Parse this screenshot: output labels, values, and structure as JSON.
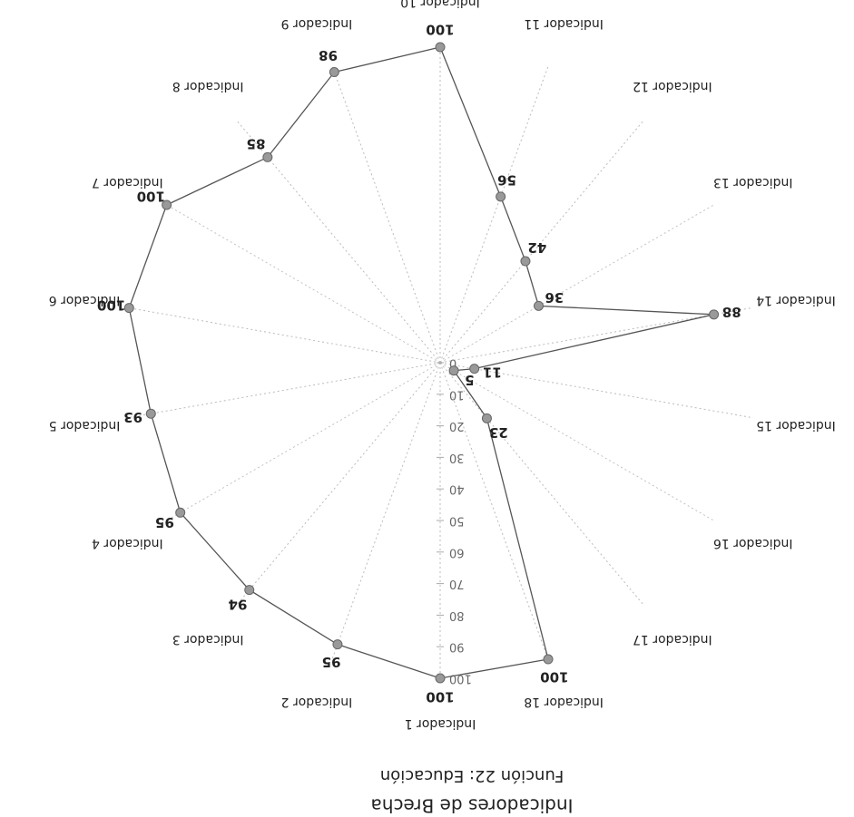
{
  "chart_data": {
    "type": "radar",
    "title": "Indicadores de Brecha",
    "subtitle": "Función 22: Educación",
    "categories": [
      "Indicador 1",
      "Indicador 2",
      "Indicador 3",
      "Indicador 4",
      "Indicador 5",
      "Indicador 6",
      "Indicador 7",
      "Indicador 8",
      "Indicador 9",
      "Indicador 10",
      "Indicador 11",
      "Indicador 12",
      "Indicador 13",
      "Indicador 14",
      "Indicador 15",
      "Indicador 16",
      "Indicador 17",
      "Indicador 18"
    ],
    "values": [
      100,
      95,
      94,
      95,
      93,
      100,
      100,
      85,
      98,
      100,
      56,
      42,
      36,
      88,
      11,
      5,
      23,
      100
    ],
    "color": "#555555",
    "ylim": [
      0,
      100
    ],
    "yticks": [
      0,
      10,
      20,
      30,
      40,
      50,
      60,
      70,
      80,
      90,
      100
    ],
    "grid": true,
    "rotated": 180
  }
}
